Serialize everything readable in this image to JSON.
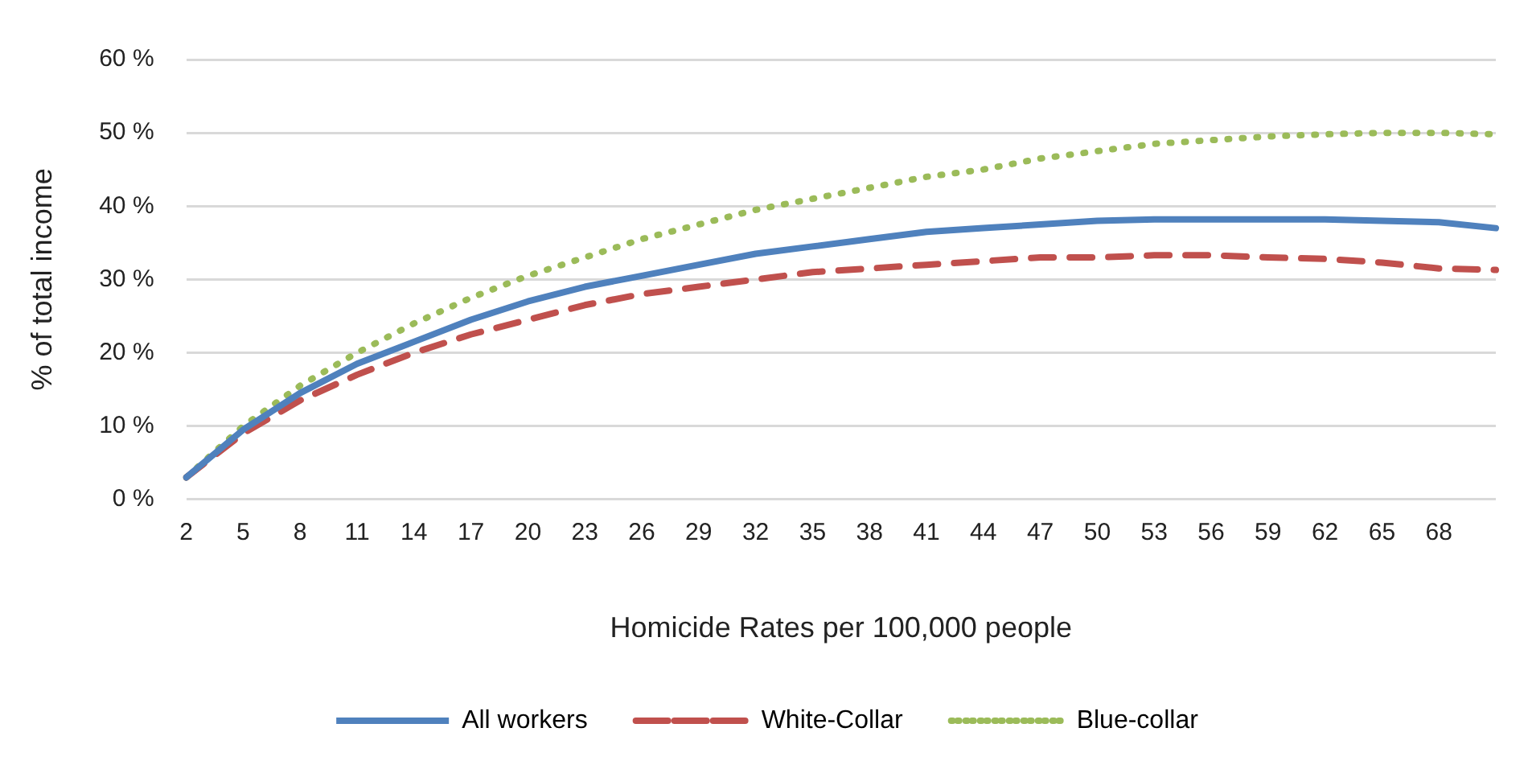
{
  "chart_data": {
    "type": "line",
    "xlabel": "Homicide Rates per 100,000 people",
    "ylabel": "% of total income",
    "categories": [
      "2",
      "5",
      "8",
      "11",
      "14",
      "17",
      "20",
      "23",
      "26",
      "29",
      "32",
      "35",
      "38",
      "41",
      "44",
      "47",
      "50",
      "53",
      "56",
      "59",
      "62",
      "65",
      "68",
      null
    ],
    "series": [
      {
        "name": "All workers",
        "color": "#4f81bd",
        "line_style": "solid",
        "values": [
          3,
          9.5,
          14.5,
          18.5,
          21.5,
          24.5,
          27,
          29,
          30.5,
          32,
          33.5,
          34.5,
          35.5,
          36.5,
          37,
          37.5,
          38,
          38.2,
          38.2,
          38.2,
          38.2,
          38,
          37.8,
          37
        ]
      },
      {
        "name": "White-Collar",
        "color": "#c0504d",
        "line_style": "dashed",
        "values": [
          3,
          9,
          13.5,
          17,
          20,
          22.5,
          24.5,
          26.5,
          28,
          29,
          30,
          31,
          31.5,
          32,
          32.5,
          33,
          33,
          33.3,
          33.3,
          33,
          32.8,
          32.3,
          31.5,
          31.3
        ]
      },
      {
        "name": "Blue-collar",
        "color": "#9bbb59",
        "line_style": "dotted",
        "values": [
          3,
          10,
          15.5,
          20,
          24,
          27.5,
          30.5,
          33,
          35.5,
          37.5,
          39.5,
          41,
          42.5,
          44,
          45,
          46.5,
          47.5,
          48.5,
          49,
          49.5,
          49.8,
          50,
          50,
          49.8
        ]
      }
    ],
    "ylim": [
      0,
      60
    ],
    "yticks": [
      {
        "value": 0,
        "label": "0 %"
      },
      {
        "value": 10,
        "label": "10 %"
      },
      {
        "value": 20,
        "label": "20 %"
      },
      {
        "value": 30,
        "label": "30 %"
      },
      {
        "value": 40,
        "label": "40 %"
      },
      {
        "value": 50,
        "label": "50 %"
      },
      {
        "value": 60,
        "label": "60 %"
      }
    ],
    "grid": "y",
    "legend": "bottom",
    "marker": "none"
  }
}
